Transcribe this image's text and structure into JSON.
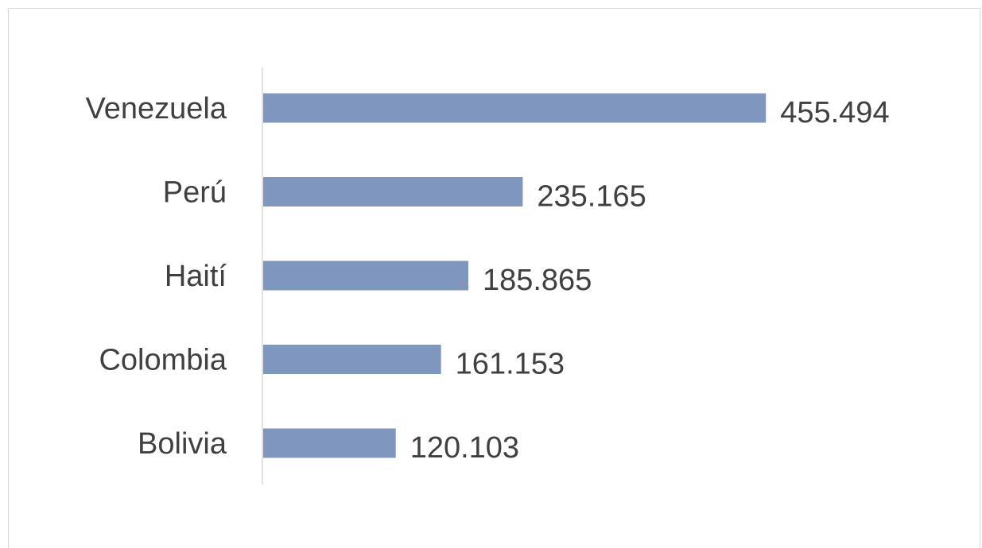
{
  "chart_data": {
    "type": "bar",
    "orientation": "horizontal",
    "categories": [
      "Venezuela",
      "Perú",
      "Haití",
      "Colombia",
      "Bolivia"
    ],
    "values": [
      455494,
      235165,
      185865,
      161153,
      120103
    ],
    "value_labels": [
      "455.494",
      "235.165",
      "185.865",
      "161.153",
      "120.103"
    ],
    "title": "",
    "xlabel": "",
    "ylabel": "",
    "xlim": [
      0,
      500000
    ],
    "grid": false,
    "legend": "none",
    "bar_color": "#7f96be",
    "axis_color": "#d9d9d9",
    "text_color": "#404040"
  }
}
